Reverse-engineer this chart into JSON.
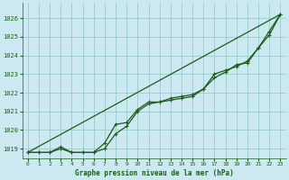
{
  "title": "Graphe pression niveau de la mer (hPa)",
  "bg_color": "#cce8f0",
  "grid_color": "#99cccc",
  "line_color": "#1a5c1a",
  "xlim": [
    -0.5,
    23.5
  ],
  "ylim": [
    1018.5,
    1026.8
  ],
  "xtick_labels": [
    "0",
    "1",
    "2",
    "3",
    "4",
    "5",
    "6",
    "7",
    "8",
    "9",
    "10",
    "11",
    "12",
    "13",
    "14",
    "15",
    "16",
    "17",
    "18",
    "19",
    "20",
    "21",
    "22",
    "23"
  ],
  "yticks": [
    1019,
    1020,
    1021,
    1022,
    1023,
    1024,
    1025,
    1026
  ],
  "series1_x": [
    0,
    1,
    2,
    3,
    4,
    5,
    6,
    7,
    8,
    9,
    10,
    11,
    12,
    13,
    14,
    15,
    16,
    17,
    18,
    19,
    20,
    21,
    22,
    23
  ],
  "series1_y": [
    1018.8,
    1018.8,
    1018.8,
    1019.0,
    1018.8,
    1018.8,
    1018.8,
    1019.0,
    1019.8,
    1020.2,
    1021.0,
    1021.4,
    1021.5,
    1021.6,
    1021.7,
    1021.8,
    1022.2,
    1022.8,
    1023.1,
    1023.5,
    1023.6,
    1024.4,
    1025.1,
    1026.2
  ],
  "series2_x": [
    0,
    1,
    2,
    3,
    4,
    5,
    6,
    7,
    8,
    9,
    10,
    11,
    12,
    13,
    14,
    15,
    16,
    17,
    18,
    19,
    20,
    21,
    22,
    23
  ],
  "series2_y": [
    1018.8,
    1018.8,
    1018.8,
    1019.1,
    1018.8,
    1018.8,
    1018.8,
    1019.3,
    1020.3,
    1020.4,
    1021.1,
    1021.5,
    1021.5,
    1021.7,
    1021.8,
    1021.9,
    1022.2,
    1023.0,
    1023.2,
    1023.4,
    1023.7,
    1024.4,
    1025.3,
    1026.2
  ],
  "series3_x": [
    0,
    23
  ],
  "series3_y": [
    1018.8,
    1026.2
  ]
}
